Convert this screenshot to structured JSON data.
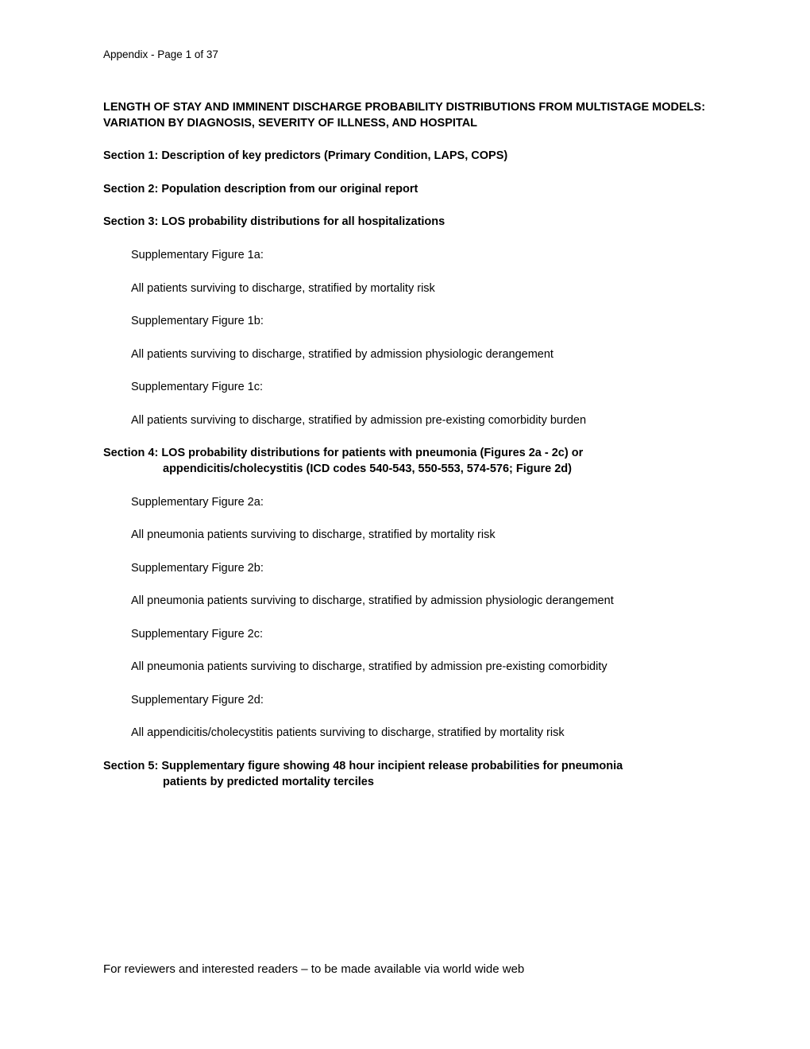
{
  "page_header": "Appendix - Page 1 of 37",
  "title": "LENGTH OF STAY AND IMMINENT DISCHARGE PROBABILITY DISTRIBUTIONS FROM MULTISTAGE MODELS:  VARIATION BY DIAGNOSIS, SEVERITY OF ILLNESS, AND HOSPITAL",
  "section1": "Section 1:  Description of key predictors (Primary Condition, LAPS, COPS)",
  "section2": "Section 2:  Population description from our original report",
  "section3": {
    "heading": "Section 3:  LOS probability distributions for all hospitalizations",
    "items": [
      "Supplementary Figure 1a:",
      "All patients surviving to discharge, stratified by mortality risk",
      "Supplementary Figure 1b:",
      "All patients surviving to discharge, stratified by admission physiologic derangement",
      "Supplementary Figure 1c:",
      "All patients surviving to discharge, stratified by admission pre-existing comorbidity burden"
    ]
  },
  "section4": {
    "heading_line1": "Section 4:  LOS probability distributions for patients with pneumonia (Figures 2a - 2c) or",
    "heading_line2": "appendicitis/cholecystitis (ICD codes 540-543, 550-553, 574-576; Figure 2d)",
    "items": [
      "Supplementary Figure 2a:",
      "All pneumonia patients surviving to discharge, stratified by mortality risk",
      "Supplementary Figure 2b:",
      "All pneumonia patients surviving to discharge, stratified by admission physiologic derangement",
      "Supplementary Figure 2c:",
      "All pneumonia patients surviving to discharge, stratified by admission pre-existing comorbidity",
      "Supplementary Figure 2d:",
      "All appendicitis/cholecystitis patients surviving to discharge, stratified by mortality risk"
    ]
  },
  "section5": {
    "heading_line1": "Section 5:  Supplementary figure showing 48 hour incipient release probabilities for pneumonia",
    "heading_line2": "patients by predicted mortality terciles"
  },
  "footer": "For reviewers and interested readers – to be made available via world wide web"
}
